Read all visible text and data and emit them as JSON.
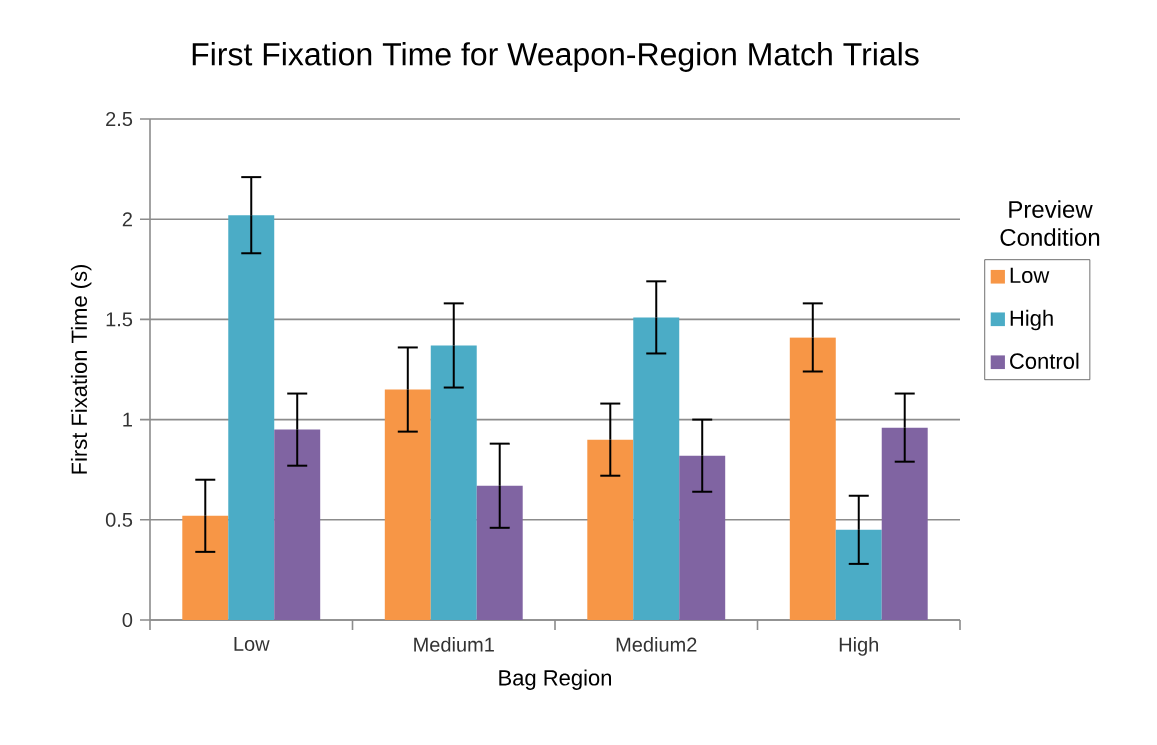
{
  "chart_data": {
    "type": "bar",
    "title": "First Fixation Time for Weapon-Region Match Trials",
    "xlabel": "Bag Region",
    "ylabel": "First Fixation Time (s)",
    "legend_title": "Preview Condition",
    "categories": [
      "Low",
      "Medium1",
      "Medium2",
      "High"
    ],
    "series": [
      {
        "name": "Low",
        "color": "#f79646",
        "values": [
          0.52,
          1.15,
          0.9,
          1.41
        ],
        "errors": [
          0.18,
          0.21,
          0.18,
          0.17
        ]
      },
      {
        "name": "High",
        "color": "#4bacc6",
        "values": [
          2.02,
          1.37,
          1.51,
          0.45
        ],
        "errors": [
          0.19,
          0.21,
          0.18,
          0.17
        ]
      },
      {
        "name": "Control",
        "color": "#8064a2",
        "values": [
          0.95,
          0.67,
          0.82,
          0.96
        ],
        "errors": [
          0.18,
          0.21,
          0.18,
          0.17
        ]
      }
    ],
    "ylim": [
      0,
      2.5
    ],
    "yticks": [
      0,
      0.5,
      1,
      1.5,
      2,
      2.5
    ],
    "grid": "y",
    "legend": "right"
  }
}
